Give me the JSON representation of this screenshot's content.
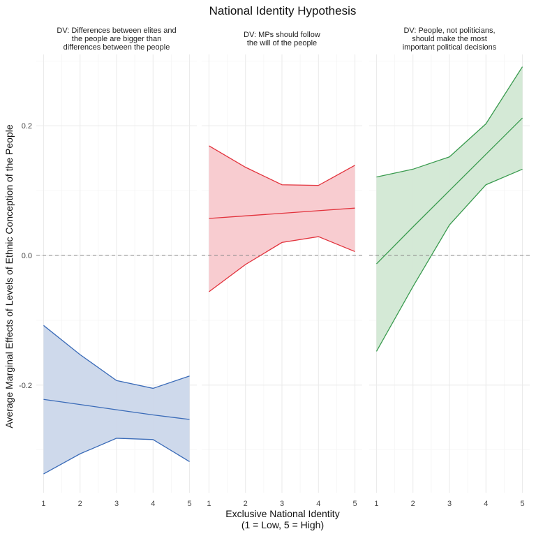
{
  "chart_data": {
    "type": "line",
    "title": "National Identity Hypothesis",
    "xlabel": "Exclusive National Identity\n(1 = Low, 5 = High)",
    "ylabel": "Average Marginal Effects of Levels of Ethnic Conception of the People",
    "x": [
      1,
      2,
      3,
      4,
      5
    ],
    "x_ticks": [
      "1",
      "2",
      "3",
      "4",
      "5"
    ],
    "y_ticks": [
      -0.2,
      0.0,
      0.2
    ],
    "y_tick_labels": [
      "-0.2",
      "0.0",
      "0.2"
    ],
    "ylim": [
      -0.366,
      0.31
    ],
    "xlim": [
      0.8,
      5.2
    ],
    "reference_line": {
      "y": 0,
      "style": "dashed"
    },
    "grid": true,
    "legend": "none",
    "facets": [
      {
        "title": "DV: Differences between elites and\nthe people are bigger than\ndifferences between the people",
        "color": "#3a6bb8",
        "fill": "#cbd7ea",
        "estimate": [
          -0.222,
          -0.23,
          -0.238,
          -0.246,
          -0.253
        ],
        "lower": [
          -0.337,
          -0.306,
          -0.282,
          -0.284,
          -0.318
        ],
        "upper": [
          -0.108,
          -0.153,
          -0.193,
          -0.205,
          -0.186
        ]
      },
      {
        "title": "DV: MPs should follow\nthe will of the people",
        "color": "#e2323c",
        "fill": "#f8c9ce",
        "estimate": [
          0.057,
          0.061,
          0.065,
          0.069,
          0.073
        ],
        "lower": [
          -0.056,
          -0.014,
          0.02,
          0.029,
          0.006
        ],
        "upper": [
          0.169,
          0.136,
          0.109,
          0.108,
          0.139
        ]
      },
      {
        "title": "DV: People, not politicians,\nshould make the most\nimportant political decisions",
        "color": "#3a9b4f",
        "fill": "#d2e8d4",
        "estimate": [
          -0.013,
          0.044,
          0.1,
          0.156,
          0.212
        ],
        "lower": [
          -0.148,
          -0.048,
          0.047,
          0.109,
          0.133
        ],
        "upper": [
          0.121,
          0.133,
          0.152,
          0.203,
          0.291
        ]
      }
    ]
  }
}
